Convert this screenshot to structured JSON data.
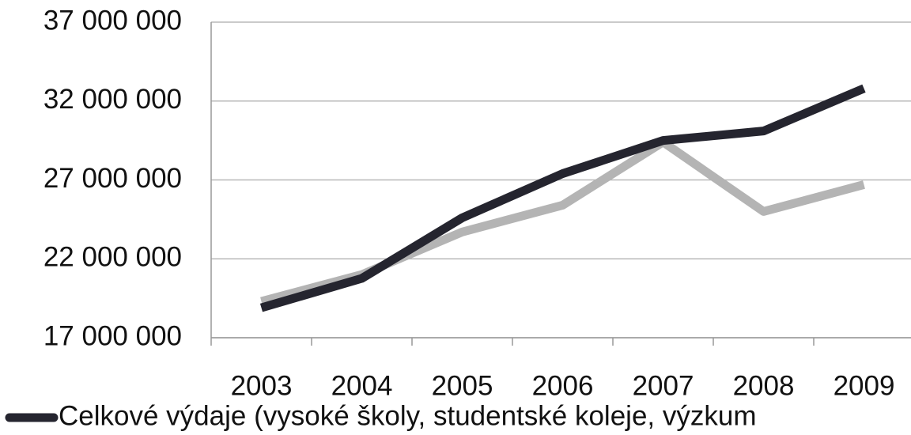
{
  "chart_data": {
    "type": "line",
    "categories": [
      "2003",
      "2004",
      "2005",
      "2006",
      "2007",
      "2008",
      "2009"
    ],
    "series": [
      {
        "name": "Celkové výdaje (vysoké školy, studentské koleje, výzkum",
        "color": "#25252f",
        "values": [
          18900000,
          20760000,
          24600000,
          27400000,
          29500000,
          30100000,
          32800000
        ]
      },
      {
        "color": "#b4b4b4",
        "values": [
          19300000,
          21000000,
          23700000,
          25400000,
          29400000,
          25000000,
          26700000
        ]
      }
    ],
    "ylim": [
      17000000,
      37000000
    ],
    "yticks": [
      {
        "value": 17000000,
        "label": "17 000 000"
      },
      {
        "value": 22000000,
        "label": "22 000 000"
      },
      {
        "value": 27000000,
        "label": "27 000 000"
      },
      {
        "value": 32000000,
        "label": "32 000 000"
      },
      {
        "value": 37000000,
        "label": "37 000 000"
      }
    ],
    "grid": true,
    "legend": "bottom"
  }
}
